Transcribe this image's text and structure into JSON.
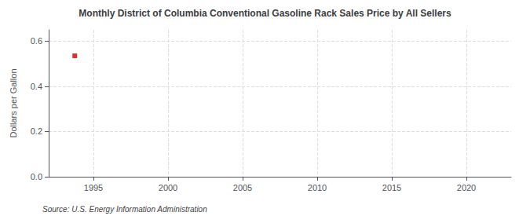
{
  "chart_data": {
    "type": "scatter",
    "title": "Monthly District of Columbia Conventional Gasoline Rack Sales Price by All Sellers",
    "ylabel": "Dollars per Gallon",
    "annotations": [
      "Source: U.S. Energy Information Administration"
    ],
    "x": [
      1993.75
    ],
    "values": [
      0.535
    ],
    "color": "#cc0000",
    "marker": "square",
    "xlim": [
      1992,
      2023
    ],
    "xticks": [
      1995,
      2000,
      2005,
      2010,
      2015,
      2020
    ],
    "ylim": [
      0.0,
      0.65
    ],
    "yticks": [
      {
        "value": 0.0,
        "label": "0.0"
      },
      0.2,
      0.4,
      0.6
    ],
    "grid": true
  }
}
